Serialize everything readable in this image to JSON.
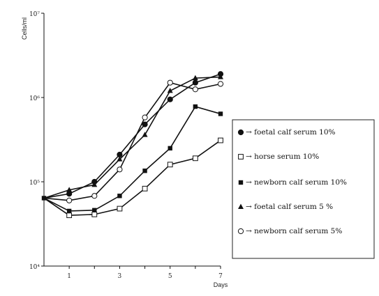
{
  "chart_data": {
    "type": "line",
    "title": "",
    "ylabel": "Cells/ml",
    "xlabel": "Days",
    "y_scale": "log",
    "ylim": [
      10000,
      10000000
    ],
    "xlim": [
      0,
      7
    ],
    "x_ticks": [
      1,
      3,
      5,
      7
    ],
    "y_ticks": [
      {
        "value": 10000,
        "label": "10⁴"
      },
      {
        "value": 100000,
        "label": "10⁵"
      },
      {
        "value": 1000000,
        "label": "10⁶"
      },
      {
        "value": 10000000,
        "label": "10⁷"
      }
    ],
    "grid": false,
    "legend_position": "right",
    "x": [
      0,
      1,
      2,
      3,
      4,
      5,
      6,
      7
    ],
    "series": [
      {
        "name": "foetal calf serum 10%",
        "marker": "filled-circle",
        "values": [
          64000,
          72000,
          100000,
          210000,
          480000,
          950000,
          1500000,
          1900000
        ]
      },
      {
        "name": "horse serum 10%",
        "marker": "open-square",
        "values": [
          64000,
          40000,
          41000,
          48000,
          83000,
          160000,
          190000,
          310000
        ]
      },
      {
        "name": "newborn calf serum 10%",
        "marker": "filled-square",
        "values": [
          64000,
          45000,
          46000,
          68000,
          135000,
          250000,
          780000,
          640000
        ]
      },
      {
        "name": "foetal calf serum 5 %",
        "marker": "filled-triangle",
        "values": [
          64000,
          80000,
          92000,
          185000,
          360000,
          1200000,
          1700000,
          1750000
        ]
      },
      {
        "name": "newborn calf serum 5%",
        "marker": "open-circle",
        "values": [
          64000,
          60000,
          68000,
          140000,
          580000,
          1500000,
          1250000,
          1450000
        ]
      }
    ]
  },
  "legend": {
    "arrow": "→",
    "items": [
      "foetal calf serum 10%",
      "horse serum 10%",
      "newborn calf serum 10%",
      "foetal calf serum 5 %",
      "newborn calf serum 5%"
    ]
  }
}
